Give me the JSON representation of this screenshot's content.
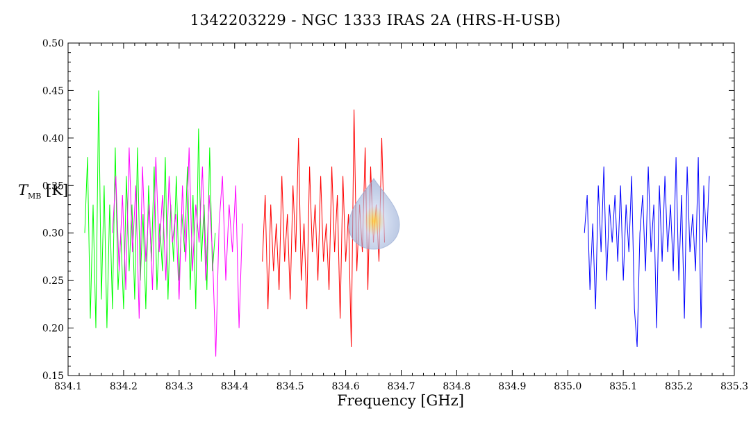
{
  "chart_data": {
    "type": "line",
    "title": "1342203229 - NGC 1333 IRAS 2A (HRS-H-USB)",
    "xlabel": "Frequency [GHz]",
    "ylabel_symbol": "T",
    "ylabel_subscript": "MB",
    "ylabel_unit": "[K]",
    "xlim": [
      834.1,
      835.3
    ],
    "ylim": [
      0.15,
      0.5
    ],
    "x_ticks": [
      "834.1",
      "834.2",
      "834.3",
      "834.4",
      "834.5",
      "834.6",
      "834.7",
      "834.8",
      "834.9",
      "835.0",
      "835.1",
      "835.2",
      "835.3"
    ],
    "y_ticks": [
      "0.15",
      "0.20",
      "0.25",
      "0.30",
      "0.35",
      "0.40",
      "0.45",
      "0.50"
    ],
    "grid": false,
    "series": [
      {
        "color": "#00ff00",
        "x": [
          834.13,
          834.135,
          834.14,
          834.145,
          834.15,
          834.155,
          834.16,
          834.165,
          834.17,
          834.175,
          834.18,
          834.185,
          834.19,
          834.195,
          834.2,
          834.205,
          834.21,
          834.215,
          834.22,
          834.225,
          834.23,
          834.235,
          834.24,
          834.245,
          834.25,
          834.255,
          834.26,
          834.265,
          834.27,
          834.275,
          834.28,
          834.285,
          834.29,
          834.295,
          834.3,
          834.305,
          834.31,
          834.315,
          834.32,
          834.325,
          834.33,
          834.335,
          834.34,
          834.345,
          834.35,
          834.355,
          834.36,
          834.365
        ],
        "y": [
          0.3,
          0.38,
          0.21,
          0.33,
          0.2,
          0.45,
          0.23,
          0.35,
          0.2,
          0.33,
          0.22,
          0.39,
          0.24,
          0.3,
          0.22,
          0.36,
          0.26,
          0.33,
          0.23,
          0.39,
          0.25,
          0.32,
          0.22,
          0.35,
          0.27,
          0.37,
          0.24,
          0.31,
          0.26,
          0.38,
          0.23,
          0.33,
          0.27,
          0.36,
          0.25,
          0.32,
          0.28,
          0.37,
          0.24,
          0.34,
          0.22,
          0.41,
          0.27,
          0.33,
          0.24,
          0.39,
          0.26,
          0.3
        ]
      },
      {
        "color": "#ff00ff",
        "x": [
          834.18,
          834.186,
          834.192,
          834.198,
          834.204,
          834.21,
          834.216,
          834.222,
          834.228,
          834.234,
          834.24,
          834.246,
          834.252,
          834.258,
          834.264,
          834.27,
          834.276,
          834.282,
          834.288,
          834.294,
          834.3,
          834.306,
          834.312,
          834.318,
          834.324,
          834.33,
          834.336,
          834.342,
          834.348,
          834.354,
          834.36,
          834.366,
          834.372,
          834.378,
          834.384,
          834.39,
          834.396,
          834.402,
          834.408,
          834.414
        ],
        "y": [
          0.3,
          0.36,
          0.26,
          0.34,
          0.24,
          0.39,
          0.28,
          0.35,
          0.21,
          0.37,
          0.27,
          0.33,
          0.24,
          0.38,
          0.28,
          0.34,
          0.25,
          0.36,
          0.29,
          0.32,
          0.23,
          0.35,
          0.27,
          0.39,
          0.26,
          0.33,
          0.29,
          0.37,
          0.25,
          0.34,
          0.28,
          0.17,
          0.31,
          0.36,
          0.25,
          0.33,
          0.28,
          0.35,
          0.2,
          0.31
        ]
      },
      {
        "color": "#ff0000",
        "x": [
          834.45,
          834.455,
          834.46,
          834.465,
          834.47,
          834.475,
          834.48,
          834.485,
          834.49,
          834.495,
          834.5,
          834.505,
          834.51,
          834.515,
          834.52,
          834.525,
          834.53,
          834.535,
          834.54,
          834.545,
          834.55,
          834.555,
          834.56,
          834.565,
          834.57,
          834.575,
          834.58,
          834.585,
          834.59,
          834.595,
          834.6,
          834.605,
          834.61,
          834.615,
          834.62,
          834.625,
          834.63,
          834.635,
          834.64,
          834.645,
          834.65,
          834.655,
          834.66,
          834.665,
          834.67
        ],
        "y": [
          0.27,
          0.34,
          0.22,
          0.33,
          0.26,
          0.31,
          0.24,
          0.36,
          0.27,
          0.32,
          0.23,
          0.35,
          0.28,
          0.4,
          0.25,
          0.31,
          0.22,
          0.37,
          0.28,
          0.33,
          0.25,
          0.36,
          0.27,
          0.31,
          0.24,
          0.37,
          0.28,
          0.34,
          0.21,
          0.36,
          0.27,
          0.32,
          0.18,
          0.43,
          0.26,
          0.33,
          0.28,
          0.39,
          0.24,
          0.37,
          0.29,
          0.33,
          0.27,
          0.4,
          0.29
        ]
      },
      {
        "color": "#0000ff",
        "x": [
          835.03,
          835.035,
          835.04,
          835.045,
          835.05,
          835.055,
          835.06,
          835.065,
          835.07,
          835.075,
          835.08,
          835.085,
          835.09,
          835.095,
          835.1,
          835.105,
          835.11,
          835.115,
          835.12,
          835.125,
          835.13,
          835.135,
          835.14,
          835.145,
          835.15,
          835.155,
          835.16,
          835.165,
          835.17,
          835.175,
          835.18,
          835.185,
          835.19,
          835.195,
          835.2,
          835.205,
          835.21,
          835.215,
          835.22,
          835.225,
          835.23,
          835.235,
          835.24,
          835.245,
          835.25,
          835.255
        ],
        "y": [
          0.3,
          0.34,
          0.24,
          0.31,
          0.22,
          0.35,
          0.28,
          0.37,
          0.25,
          0.33,
          0.29,
          0.34,
          0.27,
          0.35,
          0.25,
          0.33,
          0.28,
          0.36,
          0.22,
          0.18,
          0.3,
          0.34,
          0.26,
          0.37,
          0.28,
          0.33,
          0.2,
          0.35,
          0.27,
          0.36,
          0.28,
          0.33,
          0.26,
          0.38,
          0.25,
          0.34,
          0.21,
          0.37,
          0.28,
          0.32,
          0.26,
          0.38,
          0.2,
          0.35,
          0.29,
          0.36
        ]
      }
    ]
  }
}
